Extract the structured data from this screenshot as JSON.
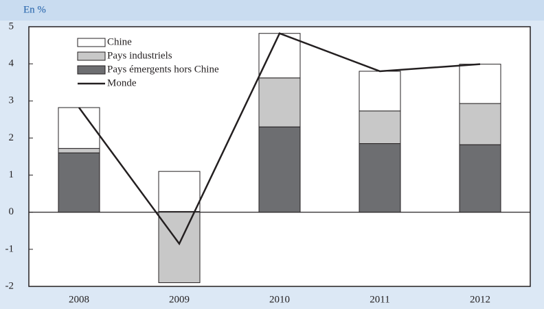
{
  "chart_data": {
    "type": "bar",
    "stacked": true,
    "y_label": "En %",
    "categories": [
      "2008",
      "2009",
      "2010",
      "2011",
      "2012"
    ],
    "series": [
      {
        "name": "Chine",
        "color": "#ffffff",
        "values": [
          1.1,
          1.08,
          1.2,
          1.07,
          1.06
        ]
      },
      {
        "name": "Pays industriels",
        "color": "#c8c8c8",
        "values": [
          0.12,
          -1.9,
          1.32,
          0.88,
          1.11
        ]
      },
      {
        "name": "Pays émergents hors Chine",
        "color": "#6d6e71",
        "values": [
          1.6,
          0.02,
          2.3,
          1.85,
          1.82
        ]
      },
      {
        "name": "Monde",
        "type": "line",
        "color": "#231f20",
        "values": [
          2.82,
          -0.85,
          4.82,
          3.8,
          3.99
        ]
      }
    ],
    "stack_order": [
      2,
      1,
      0
    ],
    "ylim": [
      -2,
      5
    ],
    "yticks": [
      -2,
      -1,
      0,
      1,
      2,
      3,
      4,
      5
    ]
  }
}
